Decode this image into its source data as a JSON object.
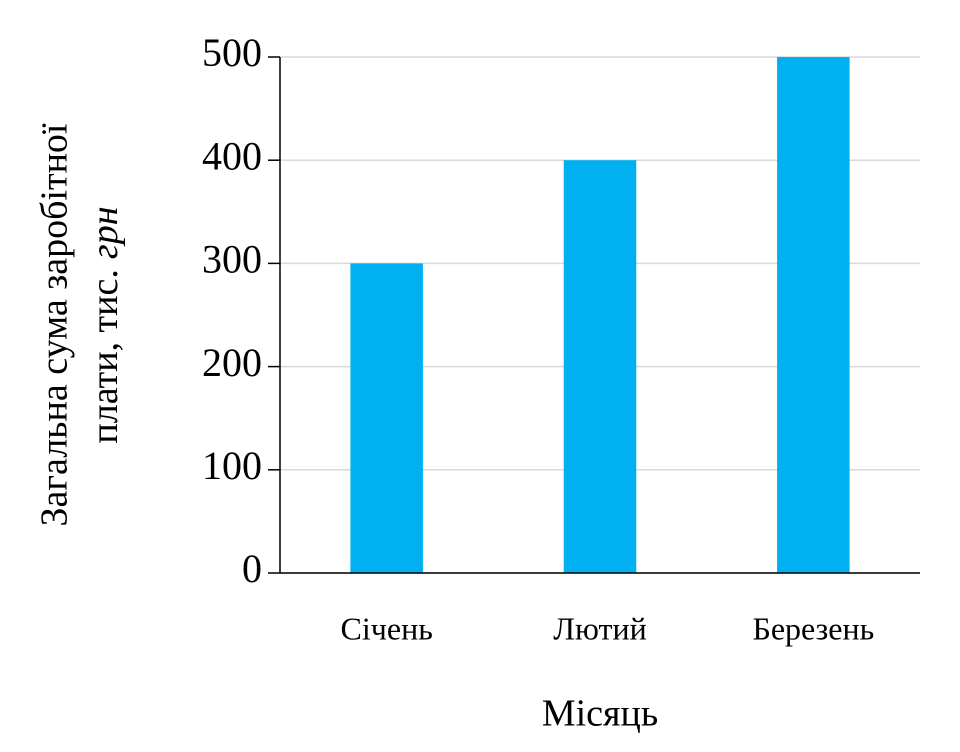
{
  "chart_data": {
    "type": "bar",
    "categories": [
      "Січень",
      "Лютий",
      "Березень"
    ],
    "values": [
      300,
      400,
      500
    ],
    "color": "#00b0f0",
    "ylim": [
      0,
      500
    ],
    "yticks": [
      0,
      100,
      200,
      300,
      400,
      500
    ],
    "grid": true,
    "x_label": "Місяць",
    "y_label": {
      "line1": "Загальна сума заробітної",
      "line2": "плати, тис.",
      "unit": "грн"
    }
  }
}
